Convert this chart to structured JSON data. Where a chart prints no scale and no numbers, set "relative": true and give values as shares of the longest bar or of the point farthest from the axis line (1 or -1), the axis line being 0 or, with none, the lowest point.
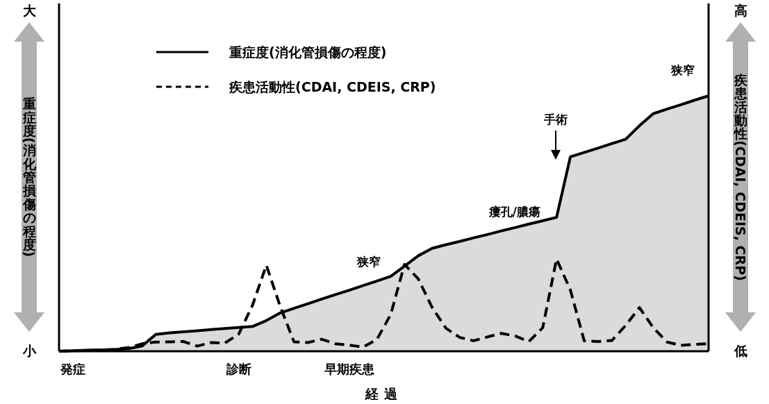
{
  "chart_data": {
    "type": "line",
    "relative": true,
    "categories": [
      null,
      "発症",
      null,
      null,
      null,
      null,
      null,
      null,
      null,
      null,
      null,
      null,
      null,
      "診断",
      null,
      null,
      null,
      null,
      null,
      null,
      null,
      "早期疾患",
      null,
      null,
      null,
      null,
      null,
      null,
      null,
      null,
      null,
      null,
      null,
      null,
      null,
      null,
      null,
      null,
      null,
      null,
      null,
      null,
      null,
      null,
      null,
      null,
      null,
      null
    ],
    "xlabel": "経過",
    "ylabel": "重症度(消化管損傷の程度)",
    "y2label": "疾患活動性(CDAI, CDEIS, CRP)",
    "legend": "top left",
    "series": [
      {
        "name": "重症度(消化管損傷の程度)",
        "type": "area",
        "color": "#000000",
        "line_style": "solid",
        "values": [
          0,
          0.002,
          0.004,
          0.005,
          0.007,
          0.01,
          0.02,
          0.066,
          0.072,
          0.076,
          0.08,
          0.085,
          0.089,
          0.093,
          0.097,
          0.12,
          0.15,
          0.168,
          0.186,
          0.204,
          0.222,
          0.239,
          0.257,
          0.275,
          0.293,
          0.333,
          0.374,
          0.403,
          0.417,
          0.43,
          0.444,
          0.457,
          0.471,
          0.484,
          0.498,
          0.511,
          0.524,
          0.761,
          0.778,
          0.795,
          0.813,
          0.83,
          0.883,
          0.93,
          0.948,
          0.965,
          0.983,
          1.0
        ]
      },
      {
        "name": "疾患活動性(CDAI, CDEIS, CRP)",
        "color": "#000000",
        "line_style": "dashed",
        "values": [
          0,
          0.002,
          0.003,
          0.005,
          0.007,
          0.014,
          0.029,
          0.036,
          0.037,
          0.038,
          0.02,
          0.034,
          0.032,
          0.067,
          0.18,
          0.337,
          0.176,
          0.037,
          0.034,
          0.047,
          0.029,
          0.024,
          0.016,
          0.046,
          0.144,
          0.34,
          0.283,
          0.171,
          0.09,
          0.054,
          0.041,
          0.056,
          0.07,
          0.06,
          0.038,
          0.092,
          0.361,
          0.24,
          0.041,
          0.038,
          0.042,
          0.101,
          0.171,
          0.092,
          0.036,
          0.023,
          0.027,
          0.03
        ]
      }
    ],
    "annotations": [
      "大",
      "小",
      "高",
      "低",
      "狭窄",
      "瘻孔/膿瘍",
      "手術",
      "狭窄"
    ]
  }
}
